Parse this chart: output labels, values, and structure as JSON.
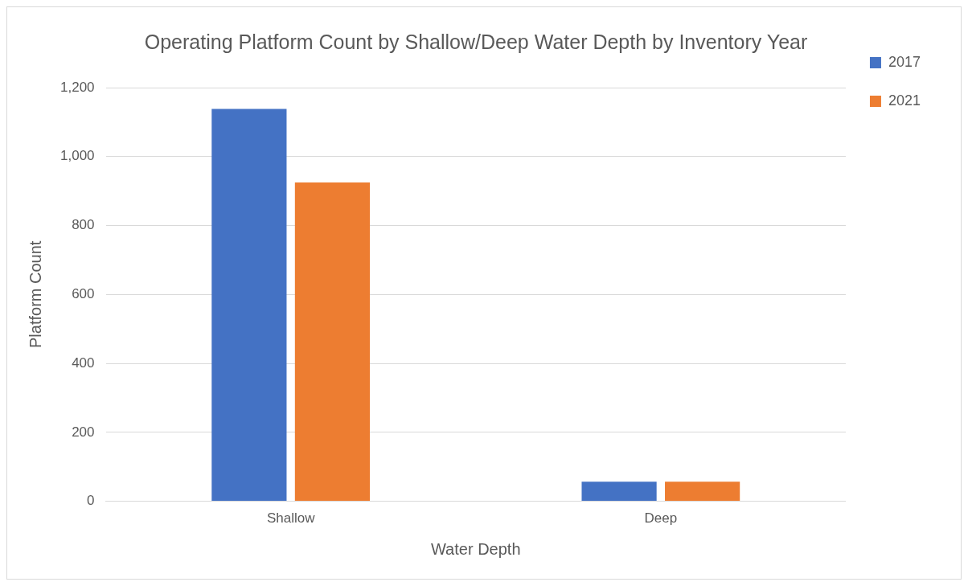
{
  "chart_data": {
    "type": "bar",
    "title": "Operating Platform Count by Shallow/Deep Water Depth by Inventory Year",
    "xlabel": "Water Depth",
    "ylabel": "Platform Count",
    "categories": [
      "Shallow",
      "Deep"
    ],
    "series": [
      {
        "name": "2017",
        "color": "#4472c4",
        "values": [
          1138,
          57
        ]
      },
      {
        "name": "2021",
        "color": "#ed7d31",
        "values": [
          925,
          57
        ]
      }
    ],
    "ylim": [
      0,
      1200
    ],
    "yticks": [
      0,
      200,
      400,
      600,
      800,
      {
        "value": 1000,
        "label": "1,000"
      },
      {
        "value": 1200,
        "label": "1,200"
      }
    ],
    "grid": "y",
    "legend": "right"
  }
}
